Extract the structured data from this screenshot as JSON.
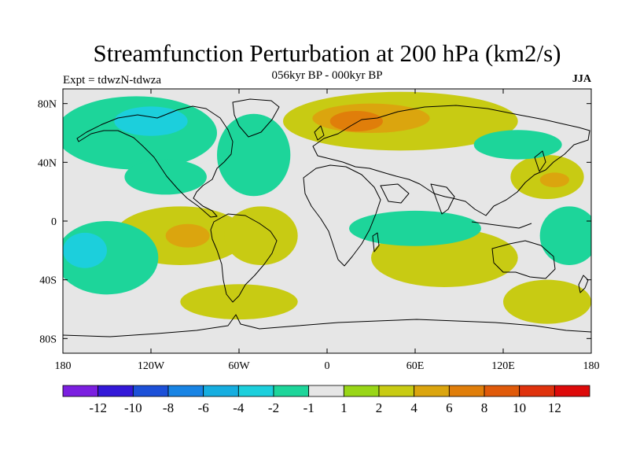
{
  "title": "Streamfunction Perturbation at 200 hPa (km2/s)",
  "subtitle": "056kyr BP - 000kyr BP",
  "experiment": "Expt = tdwzN-tdwza",
  "season": "JJA",
  "map": {
    "lon_range": [
      -180,
      180
    ],
    "lat_range": [
      -90,
      90
    ],
    "lat_ticks": [
      {
        "value": 80,
        "label": "80N"
      },
      {
        "value": 40,
        "label": "40N"
      },
      {
        "value": 0,
        "label": "0"
      },
      {
        "value": -40,
        "label": "40S"
      },
      {
        "value": -80,
        "label": "80S"
      }
    ],
    "lon_ticks": [
      {
        "value": -180,
        "label": "180"
      },
      {
        "value": -120,
        "label": "120W"
      },
      {
        "value": -60,
        "label": "60W"
      },
      {
        "value": 0,
        "label": "0"
      },
      {
        "value": 60,
        "label": "60E"
      },
      {
        "value": 120,
        "label": "120E"
      },
      {
        "value": 180,
        "label": "180"
      }
    ],
    "regions": [
      {
        "name": "ne-pacific-negative",
        "level": -2,
        "lon": -130,
        "lat": 60,
        "rlon": 55,
        "rlat": 25
      },
      {
        "name": "nw-canada-negative",
        "level": -4,
        "lon": -120,
        "lat": 68,
        "rlon": 25,
        "rlat": 10
      },
      {
        "name": "n-america-negative",
        "level": -2,
        "lon": -110,
        "lat": 30,
        "rlon": 28,
        "rlat": 12
      },
      {
        "name": "n-atlantic-negative",
        "level": -2,
        "lon": -50,
        "lat": 45,
        "rlon": 25,
        "rlat": 28
      },
      {
        "name": "eurasia-positive",
        "level": 2,
        "lon": 50,
        "lat": 68,
        "rlon": 80,
        "rlat": 20
      },
      {
        "name": "eurasia-core-positive",
        "level": 4,
        "lon": 30,
        "lat": 70,
        "rlon": 40,
        "rlat": 10
      },
      {
        "name": "scandinavia-maximum",
        "level": 6,
        "lon": 20,
        "lat": 68,
        "rlon": 18,
        "rlat": 7
      },
      {
        "name": "west-pacific-north-positive",
        "level": 2,
        "lon": 150,
        "lat": 30,
        "rlon": 25,
        "rlat": 15
      },
      {
        "name": "west-pacific-north-core",
        "level": 4,
        "lon": 155,
        "lat": 28,
        "rlon": 10,
        "rlat": 5
      },
      {
        "name": "nw-pacific-negative",
        "level": -2,
        "lon": 130,
        "lat": 52,
        "rlon": 30,
        "rlat": 10
      },
      {
        "name": "tropical-pacific-positive",
        "level": 2,
        "lon": -100,
        "lat": -10,
        "rlon": 45,
        "rlat": 20
      },
      {
        "name": "tropical-pacific-core",
        "level": 4,
        "lon": -95,
        "lat": -10,
        "rlon": 15,
        "rlat": 8
      },
      {
        "name": "south-america-positive",
        "level": 2,
        "lon": -45,
        "lat": -10,
        "rlon": 25,
        "rlat": 20
      },
      {
        "name": "south-pacific-negative",
        "level": -2,
        "lon": -150,
        "lat": -25,
        "rlon": 35,
        "rlat": 25
      },
      {
        "name": "south-pacific-deep-negative",
        "level": -4,
        "lon": -165,
        "lat": -20,
        "rlon": 15,
        "rlat": 12
      },
      {
        "name": "indian-ocean-positive",
        "level": 2,
        "lon": 80,
        "lat": -25,
        "rlon": 50,
        "rlat": 20
      },
      {
        "name": "indian-ocean-negative",
        "level": -2,
        "lon": 60,
        "lat": -5,
        "rlon": 45,
        "rlat": 12
      },
      {
        "name": "southern-ocean-positive",
        "level": 2,
        "lon": -60,
        "lat": -55,
        "rlon": 40,
        "rlat": 12
      },
      {
        "name": "south-pacific-high-lat-positive",
        "level": 2,
        "lon": 150,
        "lat": -55,
        "rlon": 30,
        "rlat": 15
      },
      {
        "name": "australia-negative",
        "level": -2,
        "lon": 165,
        "lat": -10,
        "rlon": 20,
        "rlat": 20
      }
    ]
  },
  "colorbar": {
    "colors": [
      "#7b1fe0",
      "#3318d8",
      "#1c50d8",
      "#1884e4",
      "#16aee0",
      "#1ccfdc",
      "#1dd59a",
      "#e6e6e6",
      "#99d617",
      "#c8cb13",
      "#dba50e",
      "#e07e0a",
      "#e05a0a",
      "#df320d",
      "#dd0a0a"
    ],
    "levels": [
      -14,
      -12,
      -10,
      -8,
      -6,
      -4,
      -2,
      -1,
      1,
      2,
      4,
      6,
      8,
      10,
      12,
      14
    ],
    "labels": [
      "-12",
      "-10",
      "-8",
      "-6",
      "-4",
      "-2",
      "-1",
      "1",
      "2",
      "4",
      "6",
      "8",
      "10",
      "12"
    ]
  },
  "colors": {
    "background": "#e6e6e6",
    "coastline": "#000000"
  }
}
